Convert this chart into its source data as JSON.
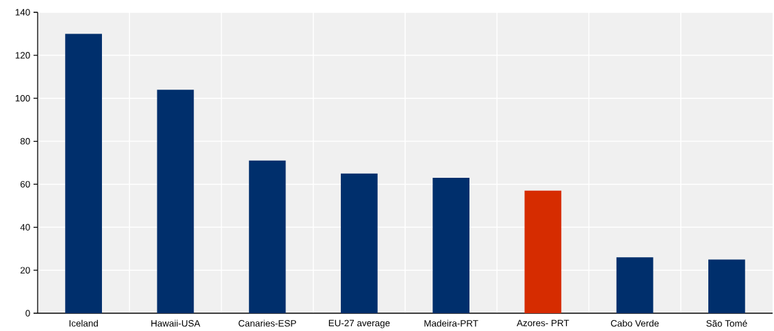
{
  "chart_data": {
    "type": "bar",
    "categories": [
      "Iceland",
      "Hawaii-USA",
      "Canaries-ESP",
      "EU-27 average",
      "Madeira-PRT",
      "Azores- PRT",
      "Cabo Verde",
      "São Tomé"
    ],
    "values": [
      130,
      104,
      71,
      65,
      63,
      57,
      26,
      25
    ],
    "colors": [
      "#002f6c",
      "#002f6c",
      "#002f6c",
      "#002f6c",
      "#002f6c",
      "#d62c00",
      "#002f6c",
      "#002f6c"
    ],
    "ylim": [
      0,
      140
    ],
    "yticks": [
      0,
      20,
      40,
      60,
      80,
      100,
      120,
      140
    ],
    "grid": true
  }
}
